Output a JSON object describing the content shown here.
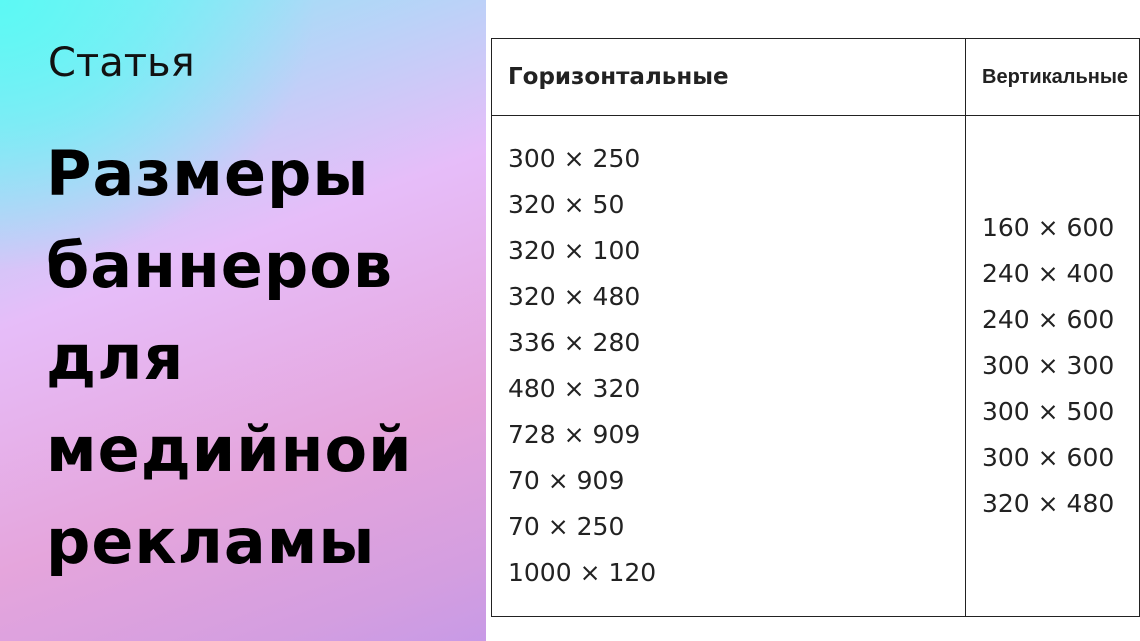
{
  "cover": {
    "kicker": "Статья",
    "title_lines": [
      "Размеры",
      "баннеров",
      "для",
      "медийной",
      "рекламы"
    ],
    "gradient_colors": [
      "#5cf9f4",
      "#e6bdf9",
      "#e5a5dc",
      "#c89ae6"
    ]
  },
  "table": {
    "headers": [
      "Горизонтальные",
      "Вертикальные"
    ],
    "horizontal": [
      "300 × 250",
      "320 × 50",
      "320 × 100",
      "320 × 480",
      "336 × 280",
      "480 × 320",
      "728 × 909",
      "70 × 909",
      "70 × 250",
      "1000 × 120"
    ],
    "vertical": [
      "160 × 600",
      "240 × 400",
      "240 × 600",
      "300 × 300",
      "300 × 500",
      "300 × 600",
      "320 × 480"
    ]
  }
}
